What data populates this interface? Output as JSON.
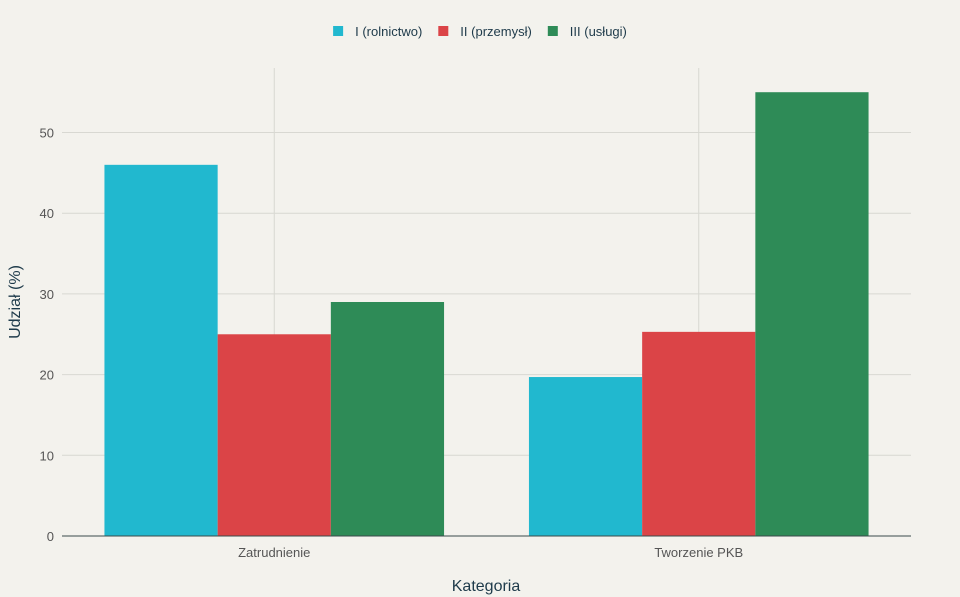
{
  "chart_data": {
    "type": "bar",
    "title": "",
    "categories": [
      "Zatrudnienie",
      "Tworzenie PKB"
    ],
    "series": [
      {
        "name": "I (rolnictwo)",
        "color": "#21b8cf",
        "values": [
          46,
          19.7
        ]
      },
      {
        "name": "II (przemysł)",
        "color": "#db4447",
        "values": [
          25,
          25.3
        ]
      },
      {
        "name": "III (usługi)",
        "color": "#2e8b57",
        "values": [
          29,
          55
        ]
      }
    ],
    "xlabel": "Kategoria",
    "ylabel": "Udział (%)",
    "ylim": [
      0,
      58
    ],
    "yticks": [
      0,
      10,
      20,
      30,
      40,
      50
    ],
    "grid": true,
    "legend_position": "top-center"
  }
}
